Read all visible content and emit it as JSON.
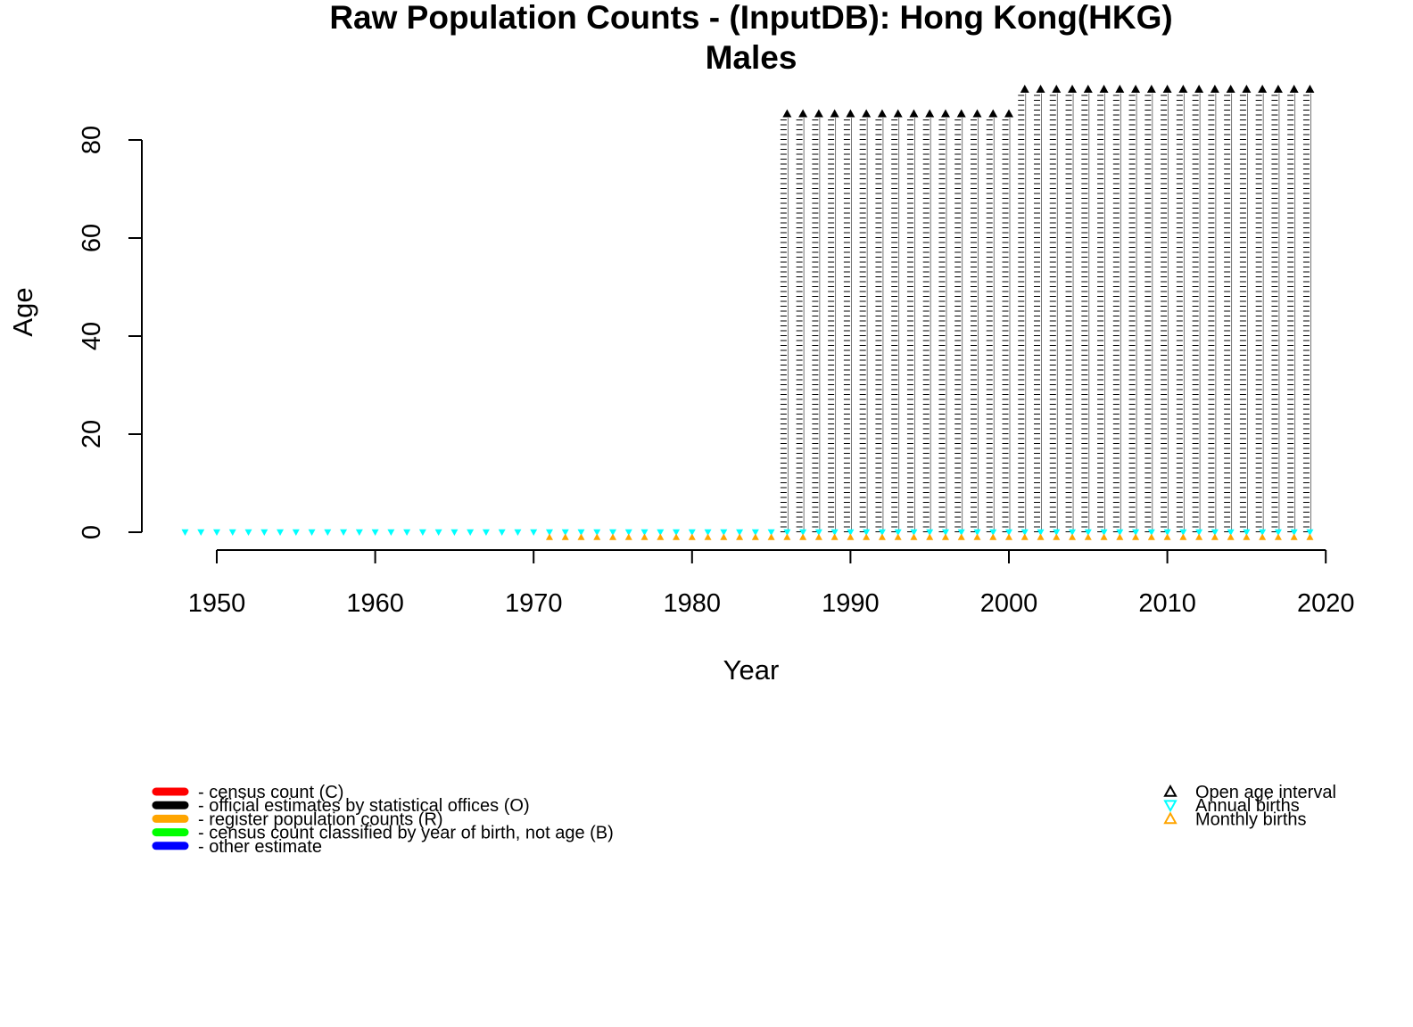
{
  "chart_data": {
    "type": "scatter",
    "title": "Raw Population Counts - (InputDB): Hong Kong(HKG)",
    "subtitle": "Males",
    "xlabel": "Year",
    "ylabel": "Age",
    "xlim": [
      1945,
      2020
    ],
    "ylim": [
      0,
      90
    ],
    "x_ticks": [
      1950,
      1960,
      1970,
      1980,
      1990,
      2000,
      2010,
      2020
    ],
    "y_ticks": [
      0,
      20,
      40,
      60,
      80
    ],
    "grid": false,
    "series": [
      {
        "name": "official estimates by statistical offices (O)",
        "color": "#000000",
        "note_type": "age-grouped counts, single-year ages",
        "blocks": [
          {
            "years": [
              1986,
              2000
            ],
            "ages": [
              0,
              84
            ],
            "open_age": 85
          },
          {
            "years": [
              2001,
              2019
            ],
            "ages": [
              0,
              89
            ],
            "open_age": 90
          }
        ]
      },
      {
        "name": "Annual births",
        "color": "#00ffff",
        "years": [
          1948,
          2019
        ],
        "age": 0
      },
      {
        "name": "Monthly births",
        "color": "#ffa500",
        "years": [
          1971,
          2019
        ],
        "age": -1
      }
    ],
    "legend_left": {
      "placement": "bottom-left",
      "items": [
        {
          "label": "- census count (C)",
          "color": "#ff0000"
        },
        {
          "label": "- official estimates by statistical offices (O)",
          "color": "#000000"
        },
        {
          "label": "- register population counts (R)",
          "color": "#ffa500"
        },
        {
          "label": "- census count classified by year of birth, not age (B)",
          "color": "#00ff00"
        },
        {
          "label": "- other estimate",
          "color": "#0000ff"
        }
      ]
    },
    "legend_right": {
      "placement": "bottom-right",
      "items": [
        {
          "label": "Open age interval",
          "color": "#000000",
          "symbol": "triangle-up"
        },
        {
          "label": "Annual births",
          "color": "#00ffff",
          "symbol": "triangle-down"
        },
        {
          "label": "Monthly births",
          "color": "#ffa500",
          "symbol": "triangle-up"
        }
      ]
    }
  }
}
